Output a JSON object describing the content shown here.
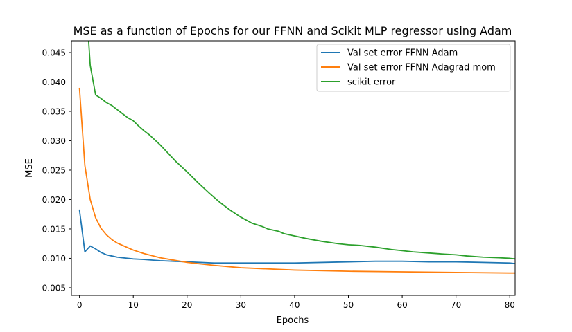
{
  "chart_data": {
    "type": "line",
    "title": "MSE as a function of Epochs for our FFNN and Scikit MLP regressor using Adam",
    "xlabel": "Epochs",
    "ylabel": "MSE",
    "xlim": [
      -1.5,
      81
    ],
    "ylim": [
      0.0037,
      0.047
    ],
    "xticks": [
      0,
      10,
      20,
      30,
      40,
      50,
      60,
      70,
      80
    ],
    "xtick_labels": [
      "0",
      "10",
      "20",
      "30",
      "40",
      "50",
      "60",
      "70",
      "80"
    ],
    "yticks": [
      0.005,
      0.01,
      0.015,
      0.02,
      0.025,
      0.03,
      0.035,
      0.04,
      0.045
    ],
    "ytick_labels": [
      "0.005",
      "0.010",
      "0.015",
      "0.020",
      "0.025",
      "0.030",
      "0.035",
      "0.040",
      "0.045"
    ],
    "grid": false,
    "legend_position": "top-right",
    "series": [
      {
        "name": "Val set error FFNN Adam",
        "color": "#1f77b4",
        "x": [
          0,
          1,
          2,
          3,
          4,
          5,
          6,
          7,
          8,
          10,
          12,
          15,
          20,
          25,
          30,
          40,
          50,
          55,
          60,
          65,
          70,
          75,
          80,
          81
        ],
        "y": [
          0.0182,
          0.0111,
          0.0121,
          0.0116,
          0.011,
          0.0106,
          0.0104,
          0.0102,
          0.0101,
          0.0099,
          0.0098,
          0.0096,
          0.0094,
          0.0092,
          0.0092,
          0.0092,
          0.0094,
          0.0095,
          0.0095,
          0.0094,
          0.0094,
          0.0093,
          0.0092,
          0.0091
        ]
      },
      {
        "name": "Val set error FFNN Adagrad mom",
        "color": "#ff7f0e",
        "x": [
          0,
          1,
          2,
          3,
          4,
          5,
          6,
          7,
          8,
          10,
          12,
          15,
          20,
          25,
          30,
          40,
          50,
          60,
          70,
          80,
          81
        ],
        "y": [
          0.0389,
          0.0258,
          0.02,
          0.0169,
          0.0151,
          0.014,
          0.0132,
          0.0126,
          0.0122,
          0.0114,
          0.0108,
          0.0101,
          0.0093,
          0.0088,
          0.0084,
          0.008,
          0.0078,
          0.0077,
          0.0076,
          0.0075,
          0.0075
        ]
      },
      {
        "name": "scikit error",
        "color": "#2ca02c",
        "x": [
          1.7,
          2,
          3,
          4,
          5,
          6,
          7,
          8,
          9,
          10,
          11,
          12,
          13,
          15,
          18,
          20,
          22,
          24,
          26,
          28,
          30,
          32,
          34,
          35,
          37,
          38,
          40,
          42,
          45,
          48,
          50,
          52,
          55,
          58,
          60,
          62,
          65,
          68,
          70,
          72,
          75,
          78,
          80,
          81
        ],
        "y": [
          0.047,
          0.0428,
          0.0378,
          0.0372,
          0.0365,
          0.036,
          0.0353,
          0.0346,
          0.0339,
          0.0334,
          0.0325,
          0.0317,
          0.031,
          0.0293,
          0.0264,
          0.0247,
          0.0229,
          0.0212,
          0.0196,
          0.0182,
          0.017,
          0.016,
          0.0154,
          0.015,
          0.0146,
          0.0142,
          0.0138,
          0.0134,
          0.0129,
          0.0125,
          0.0123,
          0.0122,
          0.0119,
          0.0115,
          0.0113,
          0.0111,
          0.0109,
          0.0107,
          0.0106,
          0.0104,
          0.0102,
          0.0101,
          0.01,
          0.0099
        ]
      }
    ]
  }
}
